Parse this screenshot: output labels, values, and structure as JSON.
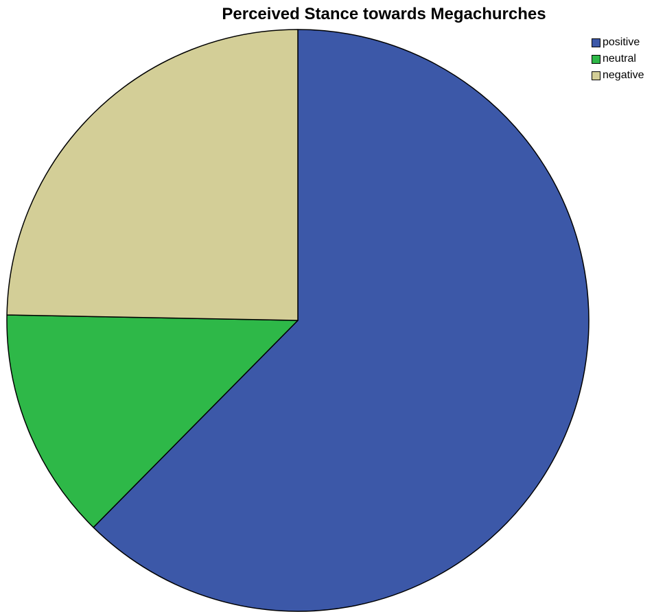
{
  "chart_data": {
    "type": "pie",
    "title": "Perceived Stance towards Megachurches",
    "legend_position": "top-right",
    "start_angle_deg": 0,
    "direction": "clockwise",
    "slices": [
      {
        "label": "positive",
        "value": 62.4,
        "color": "#3c58a8"
      },
      {
        "label": "neutral",
        "value": 12.9,
        "color": "#2eb848"
      },
      {
        "label": "negative",
        "value": 24.7,
        "color": "#d3ce97"
      }
    ]
  }
}
